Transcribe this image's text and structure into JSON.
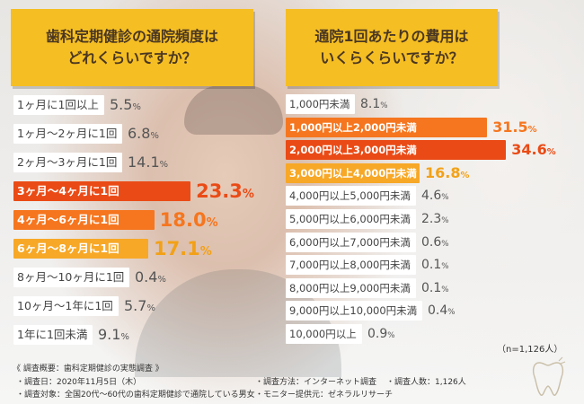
{
  "charts": {
    "left": {
      "title_lines": [
        "歯科定期健診の通院頻度は",
        "どれくらいですか？"
      ]
    },
    "right": {
      "title_lines": [
        "通院1回あたりの費用は",
        "いくらくらいですか？"
      ]
    }
  },
  "chart_data": [
    {
      "type": "bar",
      "orientation": "horizontal",
      "title": "歯科定期健診の通院頻度はどれくらいですか？",
      "unit": "%",
      "categories": [
        "1ヶ月に1回以上",
        "1ヶ月〜2ヶ月に1回",
        "2ヶ月〜3ヶ月に1回",
        "3ヶ月〜4ヶ月に1回",
        "4ヶ月〜6ヶ月に1回",
        "6ヶ月〜8ヶ月に1回",
        "8ヶ月〜10ヶ月に1回",
        "10ヶ月〜1年に1回",
        "1年に1回未満"
      ],
      "values": [
        5.5,
        6.8,
        14.1,
        23.3,
        18.0,
        17.1,
        0.4,
        5.7,
        9.1
      ],
      "value_labels": [
        "5.5",
        "6.8",
        "14.1",
        "23.3",
        "18.0",
        "17.1",
        "0.4",
        "5.7",
        "9.1"
      ],
      "highlight_colors": [
        null,
        null,
        null,
        "#ea4b16",
        "#f5761f",
        "#f7a827",
        null,
        null,
        null
      ],
      "highlight_text_colors": [
        null,
        null,
        null,
        "#ea4b16",
        "#f5761f",
        "#f2a117",
        null,
        null,
        null
      ]
    },
    {
      "type": "bar",
      "orientation": "horizontal",
      "title": "通院1回あたりの費用はいくらくらいですか？",
      "unit": "%",
      "categories": [
        "1,000円未満",
        "1,000円以上2,000円未満",
        "2,000円以上3,000円未満",
        "3,000円以上4,000円未満",
        "4,000円以上5,000円未満",
        "5,000円以上6,000円未満",
        "6,000円以上7,000円未満",
        "7,000円以上8,000円未満",
        "8,000円以上9,000円未満",
        "9,000円以上10,000円未満",
        "10,000円以上"
      ],
      "values": [
        8.1,
        31.5,
        34.6,
        16.8,
        4.6,
        2.3,
        0.6,
        0.1,
        0.1,
        0.4,
        0.9
      ],
      "value_labels": [
        "8.1",
        "31.5",
        "34.6",
        "16.8",
        "4.6",
        "2.3",
        "0.6",
        "0.1",
        "0.1",
        "0.4",
        "0.9"
      ],
      "highlight_colors": [
        null,
        "#f5761f",
        "#ea4b16",
        "#f7a827",
        null,
        null,
        null,
        null,
        null,
        null,
        null
      ],
      "highlight_text_colors": [
        null,
        "#f5761f",
        "#ea4b16",
        "#f2a117",
        null,
        null,
        null,
        null,
        null,
        null,
        null
      ]
    }
  ],
  "sample_note": "（n=1,126人）",
  "footer": {
    "heading": "《 調査概要：歯科定期健診の実態調査 》",
    "date": "・調査日：2020年11月5日（木）",
    "target": "・調査対象：全国20代〜60代の歯科定期健診で通院している男女",
    "method": "・調査方法：インターネット調査",
    "provider": "・モニター提供元：ゼネラルリサーチ",
    "count": "・調査人数：1,126人"
  },
  "colors": {
    "title_bg": "#f5be23",
    "plain_bar": "#ffffff",
    "plain_text": "#555555"
  }
}
